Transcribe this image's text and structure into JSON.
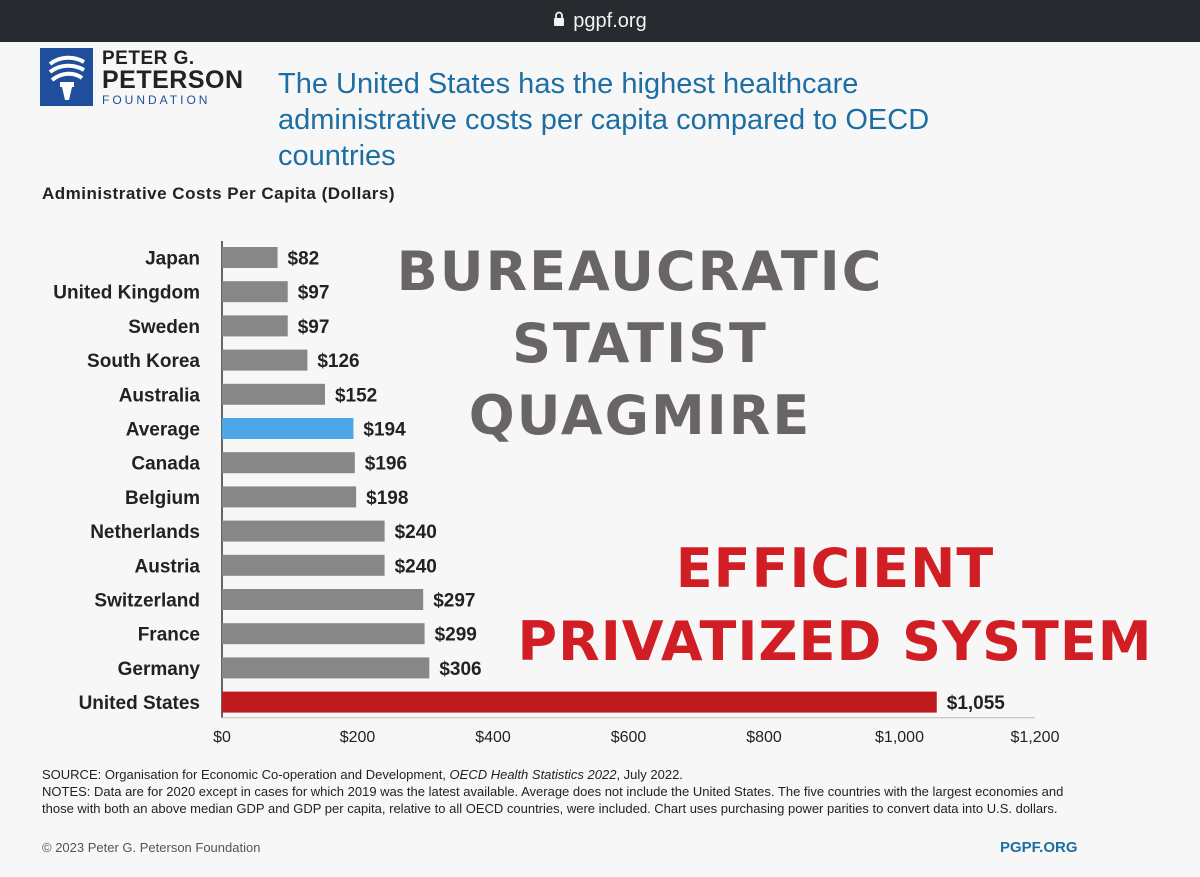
{
  "browser": {
    "url": "pgpf.org",
    "lock_icon": "lock-icon"
  },
  "logo": {
    "line1": "PETER G.",
    "line2": "PETERSON",
    "line3": "FOUNDATION",
    "color": "#1f4f9c"
  },
  "headline": "The United States has the highest healthcare administrative costs per capita compared to OECD countries",
  "overlay": {
    "gray_lines": [
      "BUREAUCRATIC",
      "STATIST",
      "QUAGMIRE"
    ],
    "red_line1": "EFFICIENT",
    "red_line2": "PRIVATIZED SYSTEM"
  },
  "chart_data": {
    "type": "bar",
    "orientation": "horizontal",
    "title": "Administrative Costs Per Capita (Dollars)",
    "categories": [
      "Japan",
      "United Kingdom",
      "Sweden",
      "South Korea",
      "Australia",
      "Average",
      "Canada",
      "Belgium",
      "Netherlands",
      "Austria",
      "Switzerland",
      "France",
      "Germany",
      "United States"
    ],
    "values": [
      82,
      97,
      97,
      126,
      152,
      194,
      196,
      198,
      240,
      240,
      297,
      299,
      306,
      1055
    ],
    "labels": [
      "$82",
      "$97",
      "$97",
      "$126",
      "$152",
      "$194",
      "$196",
      "$198",
      "$240",
      "$240",
      "$297",
      "$299",
      "$306",
      "$1,055"
    ],
    "bar_colors": [
      "#878787",
      "#878787",
      "#878787",
      "#878787",
      "#878787",
      "#4da6e6",
      "#878787",
      "#878787",
      "#878787",
      "#878787",
      "#878787",
      "#878787",
      "#878787",
      "#c01a1f"
    ],
    "xlim": [
      0,
      1200
    ],
    "xticks": [
      0,
      200,
      400,
      600,
      800,
      1000,
      1200
    ],
    "xtick_labels": [
      "$0",
      "$200",
      "$400",
      "$600",
      "$800",
      "$1,000",
      "$1,200"
    ],
    "xlabel": "",
    "ylabel": ""
  },
  "footer": {
    "source_prefix": "SOURCE: Organisation for Economic Co-operation and Development, ",
    "source_title": "OECD Health Statistics 2022",
    "source_suffix": ", July 2022.",
    "notes": "NOTES: Data are for 2020 except in cases for which 2019 was the latest available. Average does not include the United States. The five countries with the largest economies and those with both an above median GDP and GDP per capita, relative to all OECD countries, were included. Chart uses purchasing power parities to convert data into U.S. dollars.",
    "copyright": "© 2023 Peter G. Peterson Foundation",
    "site": "PGPF.ORG"
  }
}
